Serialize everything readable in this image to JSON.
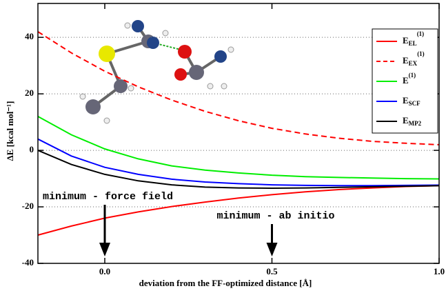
{
  "chart_data": {
    "type": "line",
    "xlabel": "deviation from the FF-optimized distance [Å]",
    "ylabel": "ΔE [kcal mol⁻¹]",
    "x": [
      -0.2,
      -0.1,
      0.0,
      0.1,
      0.2,
      0.3,
      0.4,
      0.5,
      0.6,
      0.7,
      0.8,
      0.9,
      1.0
    ],
    "xlim": [
      -0.2,
      1.0
    ],
    "ylim": [
      -40,
      52
    ],
    "xticks": [
      {
        "value": 0,
        "label": "0.0"
      },
      0.5,
      {
        "value": 1,
        "label": "1.0"
      }
    ],
    "yticks": [
      -40,
      -20,
      0,
      20,
      40
    ],
    "grid": true,
    "legend": "upper right",
    "series": [
      {
        "name": "E",
        "name_sub": "EL",
        "name_sup": "(1)",
        "color": "#ff0000",
        "dashed": false,
        "values": [
          -30,
          -26.8,
          -24,
          -21.8,
          -19.9,
          -18.3,
          -16.9,
          -15.7,
          -14.7,
          -13.9,
          -13.3,
          -12.8,
          -12.5
        ]
      },
      {
        "name": "E",
        "name_sub": "EX",
        "name_sup": "(1)",
        "color": "#ff0000",
        "dashed": true,
        "values": [
          42,
          34.5,
          28,
          22.5,
          17.8,
          13.8,
          10.5,
          7.8,
          5.8,
          4.3,
          3.2,
          2.5,
          2.0
        ]
      },
      {
        "name": "E",
        "name_sup": "(1)",
        "color": "#00ee00",
        "dashed": false,
        "values": [
          12,
          5.5,
          0.5,
          -3,
          -5.5,
          -7,
          -8,
          -8.8,
          -9.3,
          -9.6,
          -9.8,
          -10,
          -10.1
        ]
      },
      {
        "name": "E",
        "name_sub": "SCF",
        "color": "#0000ff",
        "dashed": false,
        "values": [
          4,
          -2,
          -6,
          -8.5,
          -10.2,
          -11.2,
          -11.8,
          -12.2,
          -12.4,
          -12.5,
          -12.5,
          -12.4,
          -12.3
        ]
      },
      {
        "name": "E",
        "name_sub": "MP2",
        "color": "#000000",
        "dashed": false,
        "values": [
          0,
          -5,
          -8.5,
          -10.8,
          -12.2,
          -13,
          -13.3,
          -13.4,
          -13.3,
          -13.1,
          -12.9,
          -12.7,
          -12.5
        ]
      }
    ],
    "annotations": [
      {
        "text": "minimum - force field",
        "x": 0
      },
      {
        "text": "minimum - ab initio",
        "x": 0.5
      }
    ]
  }
}
